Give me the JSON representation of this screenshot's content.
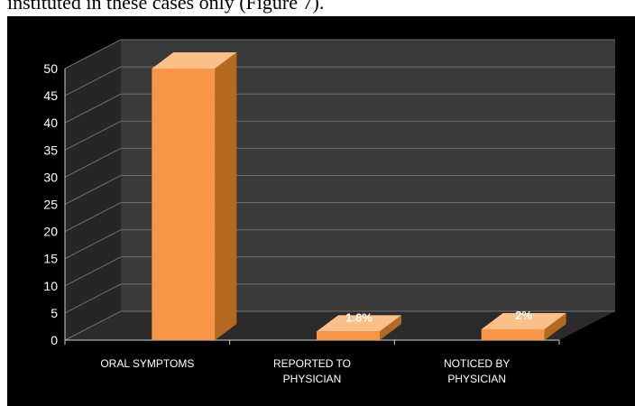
{
  "caption": {
    "text": "instituted in these cases only (Figure 7)."
  },
  "colors": {
    "background": "#000000",
    "wall": "#3a3a3a",
    "floor": "#2b2b2b",
    "gridline": "#707070",
    "bar_front": "#f79646",
    "bar_top": "#fbbf8a",
    "bar_side": "#b5681f"
  },
  "chart_data": {
    "type": "bar",
    "title": "",
    "xlabel": "",
    "ylabel": "",
    "ylim": [
      0,
      50
    ],
    "yticks": [
      "0",
      "5",
      "10",
      "15",
      "20",
      "25",
      "30",
      "35",
      "40",
      "45",
      "50"
    ],
    "grid": true,
    "categories": [
      [
        "ORAL SYMPTOMS"
      ],
      [
        "REPORTED TO",
        "PHYSICIAN"
      ],
      [
        "NOTICED BY",
        "PHYSICIAN"
      ]
    ],
    "values": [
      50,
      1.6,
      2
    ],
    "data_labels": [
      "",
      "1.6%",
      "2%"
    ]
  }
}
